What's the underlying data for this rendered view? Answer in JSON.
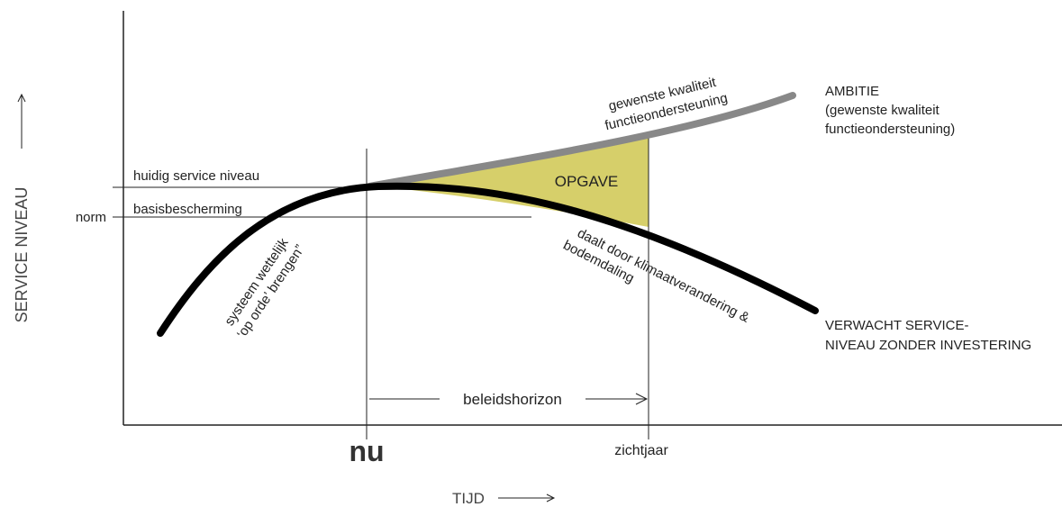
{
  "axes": {
    "y_label": "SERVICE NIVEAU",
    "x_label": "TIJD"
  },
  "levels": {
    "current": "huidig service niveau",
    "basic": "basisbescherming",
    "norm": "norm"
  },
  "ambition": {
    "curve_label": [
      "gewenste kwaliteit",
      "functieondersteuning"
    ],
    "legend": [
      "AMBITIE",
      "(gewenste kwaliteit",
      "functieondersteuning)"
    ]
  },
  "gap": "OPGAVE",
  "decline": {
    "curve_label": [
      "daalt door klimaatverandering &",
      "bodemdaling"
    ],
    "legend": [
      "VERWACHT SERVICE-",
      "NIVEAU ZONDER INVESTERING"
    ]
  },
  "rise": [
    "systeem wettelijk",
    "‘op orde’ brengen”"
  ],
  "horizon": "beleidshorizon",
  "time_marks": {
    "now": "nu",
    "target": "zichtjaar"
  }
}
